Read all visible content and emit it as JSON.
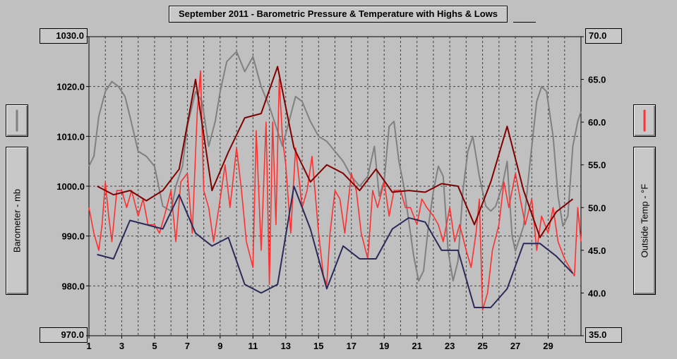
{
  "title": "September 2011 - Barometric Pressure & Temperature with Highs & Lows",
  "left_axis_label": "Barometer - mb",
  "right_axis_label": "Outside Temp - °F",
  "left_top_value": "1030.0",
  "left_bottom_value": "970.0",
  "right_top_value": "70.0",
  "right_bottom_value": "35.0",
  "colors": {
    "background": "#c0c0c0",
    "barometer": "#808080",
    "temperature": "#ff3030",
    "high": "#800000",
    "low": "#2a2a5a"
  },
  "chart_data": {
    "type": "line",
    "title": "September 2011 - Barometric Pressure & Temperature with Highs & Lows",
    "x_ticks": [
      "1",
      "3",
      "5",
      "7",
      "9",
      "11",
      "13",
      "15",
      "17",
      "19",
      "21",
      "23",
      "25",
      "27",
      "29"
    ],
    "xlim": [
      1,
      31
    ],
    "y_left": {
      "label": "Barometer - mb",
      "lim": [
        970,
        1030
      ],
      "ticks": [
        "1030.0",
        "1020.0",
        "1010.0",
        "1000.0",
        "990.0",
        "980.0",
        "970.0"
      ]
    },
    "y_right": {
      "label": "Outside Temp - °F",
      "lim": [
        35,
        70
      ],
      "ticks": [
        "70.0",
        "65.0",
        "60.0",
        "55.0",
        "50.0",
        "45.0",
        "40.0",
        "35.0"
      ]
    },
    "grid": true,
    "series": [
      {
        "axis": "left",
        "color": "#808080",
        "x": [
          1.0,
          1.3,
          1.6,
          2.0,
          2.4,
          2.8,
          3.2,
          3.5,
          4.0,
          4.5,
          5.0,
          5.5,
          6.0,
          6.3,
          6.7,
          7.0,
          7.5,
          7.9,
          8.3,
          8.7,
          9.0,
          9.4,
          10.0,
          10.5,
          11.0,
          11.5,
          12.0,
          12.4,
          12.8,
          13.2,
          13.6,
          14.0,
          14.5,
          15.0,
          15.5,
          16.0,
          16.5,
          17.0,
          17.5,
          18.0,
          18.4,
          18.7,
          19.0,
          19.3,
          19.6,
          19.9,
          20.2,
          20.5,
          20.8,
          21.1,
          21.4,
          21.7,
          22.0,
          22.3,
          22.6,
          22.9,
          23.2,
          23.5,
          23.8,
          24.1,
          24.4,
          24.8,
          25.2,
          25.5,
          25.8,
          26.2,
          26.5,
          26.8,
          27.0,
          27.5,
          27.9,
          28.3,
          28.6,
          28.9,
          29.3,
          29.6,
          29.9,
          30.2,
          30.5,
          30.8,
          31.0
        ],
        "y": [
          1004,
          1006,
          1014,
          1019,
          1021,
          1020,
          1018,
          1014,
          1007,
          1006,
          1004,
          996,
          995,
          1000,
          1004,
          1012,
          1019,
          1017,
          1008,
          1013,
          1019,
          1025,
          1027,
          1023,
          1026,
          1020,
          1016,
          1012,
          1008,
          1013,
          1018,
          1017,
          1013,
          1010,
          1009,
          1007,
          1005,
          1002,
          1000,
          1002,
          1008,
          998,
          1001,
          1012,
          1013,
          1005,
          1000,
          993,
          986,
          981,
          983,
          992,
          999,
          1004,
          1002,
          987,
          981,
          985,
          999,
          1007,
          1010,
          1002,
          996,
          995,
          996,
          1000,
          1005,
          990,
          987,
          992,
          1005,
          1017,
          1020,
          1019,
          1010,
          998,
          992,
          994,
          1008,
          1013,
          1015
        ]
      },
      {
        "axis": "right",
        "color": "#ff3030",
        "x": [
          1.0,
          1.3,
          1.6,
          1.8,
          2.0,
          2.2,
          2.4,
          2.7,
          3.0,
          3.3,
          3.6,
          4.0,
          4.3,
          4.6,
          5.0,
          5.3,
          5.6,
          6.0,
          6.3,
          6.6,
          7.0,
          7.3,
          7.6,
          7.8,
          8.0,
          8.3,
          8.6,
          9.0,
          9.3,
          9.6,
          10.0,
          10.3,
          10.6,
          11.0,
          11.2,
          11.5,
          11.8,
          12.0,
          12.2,
          12.4,
          12.6,
          12.8,
          13.0,
          13.3,
          13.6,
          14.0,
          14.3,
          14.6,
          15.0,
          15.3,
          15.5,
          15.7,
          16.0,
          16.3,
          16.6,
          17.0,
          17.3,
          17.6,
          18.0,
          18.3,
          18.6,
          19.0,
          19.3,
          19.6,
          20.0,
          20.3,
          20.6,
          21.0,
          21.3,
          21.6,
          22.0,
          22.3,
          22.6,
          23.0,
          23.3,
          23.6,
          24.0,
          24.3,
          24.6,
          24.8,
          25.0,
          25.3,
          25.6,
          26.0,
          26.3,
          26.6,
          27.0,
          27.3,
          27.6,
          28.0,
          28.3,
          28.6,
          29.0,
          29.3,
          29.6,
          30.0,
          30.3,
          30.6,
          30.8,
          31.0
        ],
        "y": [
          50,
          47,
          45,
          48,
          53,
          49,
          46,
          52,
          52,
          50,
          52,
          49,
          51,
          48,
          48,
          47,
          49,
          52,
          46,
          53,
          54,
          47,
          61,
          66,
          52,
          50,
          46,
          51,
          55,
          50,
          57,
          52,
          46,
          43,
          59,
          45,
          60,
          41,
          60,
          48,
          65,
          58,
          55,
          47,
          57,
          50,
          52,
          56,
          47,
          42,
          41,
          47,
          52,
          51,
          47,
          54,
          52,
          47,
          44,
          52,
          50,
          53,
          49,
          52,
          52,
          50,
          50,
          48,
          51,
          50,
          49,
          48,
          46,
          50,
          46,
          48,
          45,
          43,
          47,
          51,
          38,
          40,
          45,
          48,
          53,
          50,
          54,
          51,
          48,
          51,
          45,
          49,
          47,
          50,
          46,
          44,
          43,
          42,
          50,
          46
        ]
      },
      {
        "axis": "right",
        "color": "#800000",
        "x": [
          1.5,
          2.5,
          3.5,
          4.5,
          5.5,
          6.5,
          7.5,
          8.5,
          9.5,
          10.5,
          11.5,
          12.5,
          13.5,
          14.5,
          15.5,
          16.5,
          17.5,
          18.5,
          19.5,
          20.5,
          21.5,
          22.5,
          23.5,
          24.5,
          25.5,
          26.5,
          27.5,
          28.5,
          29.5,
          30.5
        ],
        "y": [
          52.5,
          51.5,
          52,
          50.8,
          52,
          54.5,
          65,
          52,
          56.5,
          60.5,
          61,
          66.5,
          57,
          53,
          55,
          54,
          52,
          54.5,
          51.8,
          52,
          51.8,
          52.8,
          52.5,
          48,
          53,
          59.5,
          52,
          46.5,
          49.5,
          51
        ]
      },
      {
        "axis": "right",
        "color": "#2a2a5a",
        "x": [
          1.5,
          2.5,
          3.5,
          4.5,
          5.5,
          6.5,
          7.5,
          8.5,
          9.5,
          10.5,
          11.5,
          12.5,
          13.5,
          14.5,
          15.5,
          16.5,
          17.5,
          18.5,
          19.5,
          20.5,
          21.5,
          22.5,
          23.5,
          24.5,
          25.5,
          26.5,
          27.5,
          28.5,
          29.5,
          30.5
        ],
        "y": [
          44.5,
          44,
          48.5,
          48,
          47.5,
          51.5,
          47,
          45.5,
          46.5,
          41,
          40,
          41,
          52.5,
          47.5,
          40.5,
          45.5,
          44,
          44,
          47.5,
          48.8,
          48.3,
          45,
          45,
          38.3,
          38.3,
          40.5,
          45.8,
          45.8,
          44.3,
          42.3
        ]
      }
    ]
  }
}
